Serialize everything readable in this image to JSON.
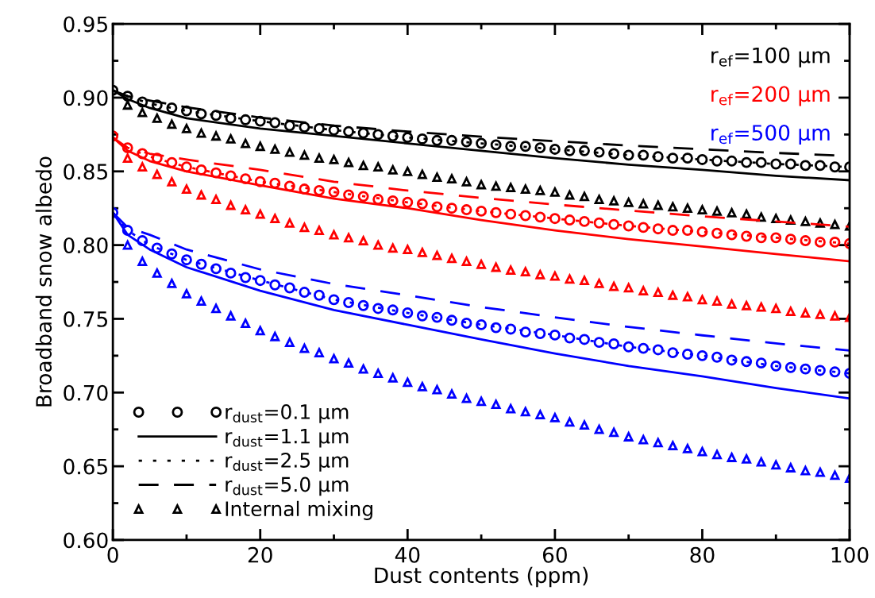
{
  "chart_data": {
    "type": "line",
    "xlabel": "Dust contents (ppm)",
    "ylabel": "Broadband snow albedo",
    "xlim": [
      0,
      100
    ],
    "ylim": [
      0.6,
      0.95
    ],
    "xticks": [
      0,
      {
        "value": 10,
        "label": null
      },
      20,
      {
        "value": 30,
        "label": null
      },
      40,
      {
        "value": 50,
        "label": null
      },
      60,
      {
        "value": 70,
        "label": null
      },
      80,
      {
        "value": 90,
        "label": null
      },
      100
    ],
    "yticks": [
      {
        "value": 0.6,
        "label": "0.60"
      },
      {
        "value": 0.625,
        "label": null
      },
      {
        "value": 0.65,
        "label": "0.65"
      },
      {
        "value": 0.675,
        "label": null
      },
      {
        "value": 0.7,
        "label": "0.70"
      },
      {
        "value": 0.725,
        "label": null
      },
      {
        "value": 0.75,
        "label": "0.75"
      },
      {
        "value": 0.775,
        "label": null
      },
      {
        "value": 0.8,
        "label": "0.80"
      },
      {
        "value": 0.825,
        "label": null
      },
      {
        "value": 0.85,
        "label": "0.85"
      },
      {
        "value": 0.875,
        "label": null
      },
      {
        "value": 0.9,
        "label": "0.90"
      },
      {
        "value": 0.925,
        "label": null
      },
      {
        "value": 0.95,
        "label": "0.95"
      }
    ],
    "grid": false,
    "legend": "bottom left",
    "annotations": [
      "r$_{ef}$=100 µm",
      "r$_{ef}$=200 µm",
      "r$_{ef}$=500 µm"
    ],
    "series": [
      {
        "name": "r$_{dust}$=0.1 µm",
        "type": "scatter",
        "marker": "circle",
        "color": "#000000",
        "x": [
          0,
          2,
          4,
          6,
          8,
          10,
          12,
          14,
          16,
          18,
          20,
          22,
          24,
          26,
          28,
          30,
          32,
          34,
          36,
          38,
          40,
          42,
          44,
          46,
          48,
          50,
          52,
          54,
          56,
          58,
          60,
          62,
          64,
          66,
          68,
          70,
          72,
          74,
          76,
          78,
          80,
          82,
          84,
          86,
          88,
          90,
          92,
          94,
          96,
          98,
          100
        ],
        "values": [
          0.905,
          0.901,
          0.897,
          0.895,
          0.893,
          0.891,
          0.889,
          0.888,
          0.886,
          0.885,
          0.884,
          0.883,
          0.881,
          0.88,
          0.879,
          0.878,
          0.877,
          0.876,
          0.875,
          0.874,
          0.873,
          0.872,
          0.871,
          0.871,
          0.87,
          0.869,
          0.868,
          0.867,
          0.867,
          0.866,
          0.865,
          0.864,
          0.864,
          0.863,
          0.862,
          0.861,
          0.861,
          0.86,
          0.859,
          0.859,
          0.858,
          0.857,
          0.857,
          0.856,
          0.856,
          0.855,
          0.855,
          0.854,
          0.854,
          0.853,
          0.853
        ]
      },
      {
        "name": "r$_{dust}$=1.1 µm",
        "line_style": "solid",
        "color": "#000000",
        "x": [
          0,
          2,
          5,
          10,
          20,
          30,
          40,
          50,
          60,
          70,
          80,
          90,
          100
        ],
        "values": [
          0.905,
          0.899,
          0.893,
          0.886,
          0.879,
          0.874,
          0.869,
          0.864,
          0.859,
          0.8545,
          0.851,
          0.847,
          0.844
        ]
      },
      {
        "name": "r$_{dust}$=2.5 µm",
        "line_style": "dotted",
        "color": "#000000",
        "x": [
          0,
          2,
          5,
          10,
          20,
          30,
          40,
          50,
          60,
          70,
          80,
          90,
          100
        ],
        "values": [
          0.905,
          0.901,
          0.896,
          0.891,
          0.884,
          0.878,
          0.873,
          0.869,
          0.865,
          0.861,
          0.858,
          0.855,
          0.853
        ]
      },
      {
        "name": "r$_{dust}$=5.0 µm",
        "line_style": "dashed",
        "color": "#000000",
        "x": [
          0,
          2,
          5,
          10,
          20,
          30,
          40,
          50,
          60,
          70,
          80,
          90,
          100
        ],
        "values": [
          0.905,
          0.901,
          0.898,
          0.8935,
          0.8865,
          0.881,
          0.877,
          0.8735,
          0.8705,
          0.8675,
          0.865,
          0.8625,
          0.8605
        ]
      },
      {
        "name": "Internal mixing",
        "type": "scatter",
        "marker": "triangle",
        "color": "#000000",
        "x": [
          2,
          4,
          6,
          8,
          10,
          12,
          14,
          16,
          18,
          20,
          22,
          24,
          26,
          28,
          30,
          32,
          34,
          36,
          38,
          40,
          42,
          44,
          46,
          48,
          50,
          52,
          54,
          56,
          58,
          60,
          62,
          64,
          66,
          68,
          70,
          72,
          74,
          76,
          78,
          80,
          82,
          84,
          86,
          88,
          90,
          92,
          94,
          96,
          98,
          100
        ],
        "values": [
          0.895,
          0.89,
          0.886,
          0.882,
          0.879,
          0.876,
          0.874,
          0.872,
          0.869,
          0.867,
          0.865,
          0.863,
          0.861,
          0.859,
          0.858,
          0.856,
          0.854,
          0.853,
          0.851,
          0.85,
          0.848,
          0.846,
          0.845,
          0.843,
          0.841,
          0.84,
          0.839,
          0.838,
          0.837,
          0.836,
          0.834,
          0.833,
          0.831,
          0.83,
          0.829,
          0.828,
          0.827,
          0.826,
          0.825,
          0.824,
          0.823,
          0.822,
          0.821,
          0.819,
          0.818,
          0.817,
          0.816,
          0.815,
          0.814,
          0.813
        ]
      },
      {
        "type": "scatter",
        "marker": "circle",
        "color": "#ff0000",
        "x": [
          0,
          2,
          4,
          6,
          8,
          10,
          12,
          14,
          16,
          18,
          20,
          22,
          24,
          26,
          28,
          30,
          32,
          34,
          36,
          38,
          40,
          42,
          44,
          46,
          48,
          50,
          52,
          54,
          56,
          58,
          60,
          62,
          64,
          66,
          68,
          70,
          72,
          74,
          76,
          78,
          80,
          82,
          84,
          86,
          88,
          90,
          92,
          94,
          96,
          98,
          100
        ],
        "values": [
          0.874,
          0.866,
          0.862,
          0.859,
          0.856,
          0.853,
          0.851,
          0.849,
          0.847,
          0.845,
          0.843,
          0.842,
          0.84,
          0.838,
          0.837,
          0.836,
          0.834,
          0.833,
          0.831,
          0.83,
          0.829,
          0.828,
          0.826,
          0.825,
          0.824,
          0.823,
          0.822,
          0.821,
          0.82,
          0.819,
          0.818,
          0.817,
          0.816,
          0.815,
          0.814,
          0.813,
          0.812,
          0.811,
          0.81,
          0.81,
          0.809,
          0.808,
          0.807,
          0.806,
          0.805,
          0.805,
          0.804,
          0.803,
          0.802,
          0.802,
          0.801
        ]
      },
      {
        "line_style": "solid",
        "color": "#ff0000",
        "x": [
          0,
          2,
          5,
          10,
          20,
          30,
          40,
          50,
          60,
          70,
          80,
          90,
          100
        ],
        "values": [
          0.873,
          0.864,
          0.857,
          0.85,
          0.8405,
          0.8315,
          0.825,
          0.817,
          0.81,
          0.804,
          0.799,
          0.794,
          0.789
        ]
      },
      {
        "line_style": "dotted",
        "color": "#ff0000",
        "x": [
          0,
          2,
          5,
          10,
          20,
          30,
          40,
          50,
          60,
          70,
          80,
          90,
          100
        ],
        "values": [
          0.873,
          0.866,
          0.86,
          0.853,
          0.843,
          0.836,
          0.829,
          0.823,
          0.818,
          0.813,
          0.809,
          0.805,
          0.801
        ]
      },
      {
        "line_style": "dashed",
        "color": "#ff0000",
        "x": [
          0,
          2,
          5,
          10,
          20,
          30,
          40,
          50,
          60,
          70,
          80,
          90,
          100
        ],
        "values": [
          0.873,
          0.866,
          0.862,
          0.858,
          0.851,
          0.843,
          0.837,
          0.832,
          0.8275,
          0.8235,
          0.8195,
          0.816,
          0.8125
        ]
      },
      {
        "type": "scatter",
        "marker": "triangle",
        "color": "#ff0000",
        "x": [
          2,
          4,
          6,
          8,
          10,
          12,
          14,
          16,
          18,
          20,
          22,
          24,
          26,
          28,
          30,
          32,
          34,
          36,
          38,
          40,
          42,
          44,
          46,
          48,
          50,
          52,
          54,
          56,
          58,
          60,
          62,
          64,
          66,
          68,
          70,
          72,
          74,
          76,
          78,
          80,
          82,
          84,
          86,
          88,
          90,
          92,
          94,
          96,
          98,
          100
        ],
        "values": [
          0.859,
          0.853,
          0.848,
          0.843,
          0.838,
          0.834,
          0.831,
          0.827,
          0.824,
          0.821,
          0.818,
          0.815,
          0.812,
          0.81,
          0.807,
          0.805,
          0.803,
          0.8,
          0.798,
          0.797,
          0.795,
          0.793,
          0.791,
          0.789,
          0.787,
          0.785,
          0.783,
          0.782,
          0.78,
          0.779,
          0.777,
          0.776,
          0.774,
          0.772,
          0.771,
          0.769,
          0.768,
          0.766,
          0.765,
          0.763,
          0.762,
          0.76,
          0.759,
          0.758,
          0.757,
          0.755,
          0.754,
          0.753,
          0.752,
          0.751
        ]
      },
      {
        "type": "scatter",
        "marker": "circle",
        "color": "#0000ff",
        "x": [
          0,
          2,
          4,
          6,
          8,
          10,
          12,
          14,
          16,
          18,
          20,
          22,
          24,
          26,
          28,
          30,
          32,
          34,
          36,
          38,
          40,
          42,
          44,
          46,
          48,
          50,
          52,
          54,
          56,
          58,
          60,
          62,
          64,
          66,
          68,
          70,
          72,
          74,
          76,
          78,
          80,
          82,
          84,
          86,
          88,
          90,
          92,
          94,
          96,
          98,
          100
        ],
        "values": [
          0.822,
          0.81,
          0.803,
          0.798,
          0.794,
          0.79,
          0.787,
          0.784,
          0.781,
          0.778,
          0.776,
          0.773,
          0.771,
          0.768,
          0.766,
          0.763,
          0.761,
          0.759,
          0.757,
          0.756,
          0.754,
          0.752,
          0.751,
          0.749,
          0.747,
          0.746,
          0.744,
          0.743,
          0.741,
          0.74,
          0.739,
          0.737,
          0.736,
          0.734,
          0.733,
          0.731,
          0.73,
          0.729,
          0.727,
          0.726,
          0.725,
          0.724,
          0.722,
          0.721,
          0.72,
          0.718,
          0.717,
          0.716,
          0.715,
          0.714,
          0.713
        ]
      },
      {
        "line_style": "solid",
        "color": "#0000ff",
        "x": [
          0,
          2,
          5,
          10,
          20,
          30,
          40,
          50,
          60,
          70,
          80,
          90,
          100
        ],
        "values": [
          0.822,
          0.807,
          0.797,
          0.785,
          0.769,
          0.756,
          0.746,
          0.736,
          0.7265,
          0.718,
          0.711,
          0.703,
          0.696
        ]
      },
      {
        "line_style": "dotted",
        "color": "#0000ff",
        "x": [
          0,
          2,
          5,
          10,
          20,
          30,
          40,
          50,
          60,
          70,
          80,
          90,
          100
        ],
        "values": [
          0.822,
          0.81,
          0.8,
          0.79,
          0.776,
          0.763,
          0.754,
          0.746,
          0.739,
          0.731,
          0.725,
          0.718,
          0.713
        ]
      },
      {
        "line_style": "dashed",
        "color": "#0000ff",
        "x": [
          0,
          2,
          5,
          10,
          20,
          30,
          40,
          50,
          60,
          70,
          80,
          90,
          100
        ],
        "values": [
          0.822,
          0.812,
          0.807,
          0.797,
          0.7835,
          0.7736,
          0.766,
          0.758,
          0.751,
          0.7445,
          0.7388,
          0.7333,
          0.7285
        ]
      },
      {
        "type": "scatter",
        "marker": "triangle",
        "color": "#0000ff",
        "x": [
          2,
          4,
          6,
          8,
          10,
          12,
          14,
          16,
          18,
          20,
          22,
          24,
          26,
          28,
          30,
          32,
          34,
          36,
          38,
          40,
          42,
          44,
          46,
          48,
          50,
          52,
          54,
          56,
          58,
          60,
          62,
          64,
          66,
          68,
          70,
          72,
          74,
          76,
          78,
          80,
          82,
          84,
          86,
          88,
          90,
          92,
          94,
          96,
          98,
          100
        ],
        "values": [
          0.8,
          0.789,
          0.781,
          0.774,
          0.767,
          0.762,
          0.757,
          0.752,
          0.747,
          0.742,
          0.738,
          0.734,
          0.73,
          0.727,
          0.723,
          0.72,
          0.716,
          0.713,
          0.71,
          0.707,
          0.704,
          0.702,
          0.699,
          0.696,
          0.694,
          0.692,
          0.689,
          0.687,
          0.685,
          0.683,
          0.68,
          0.678,
          0.675,
          0.673,
          0.67,
          0.668,
          0.666,
          0.664,
          0.662,
          0.66,
          0.658,
          0.656,
          0.655,
          0.653,
          0.651,
          0.649,
          0.647,
          0.646,
          0.644,
          0.642
        ]
      }
    ]
  }
}
